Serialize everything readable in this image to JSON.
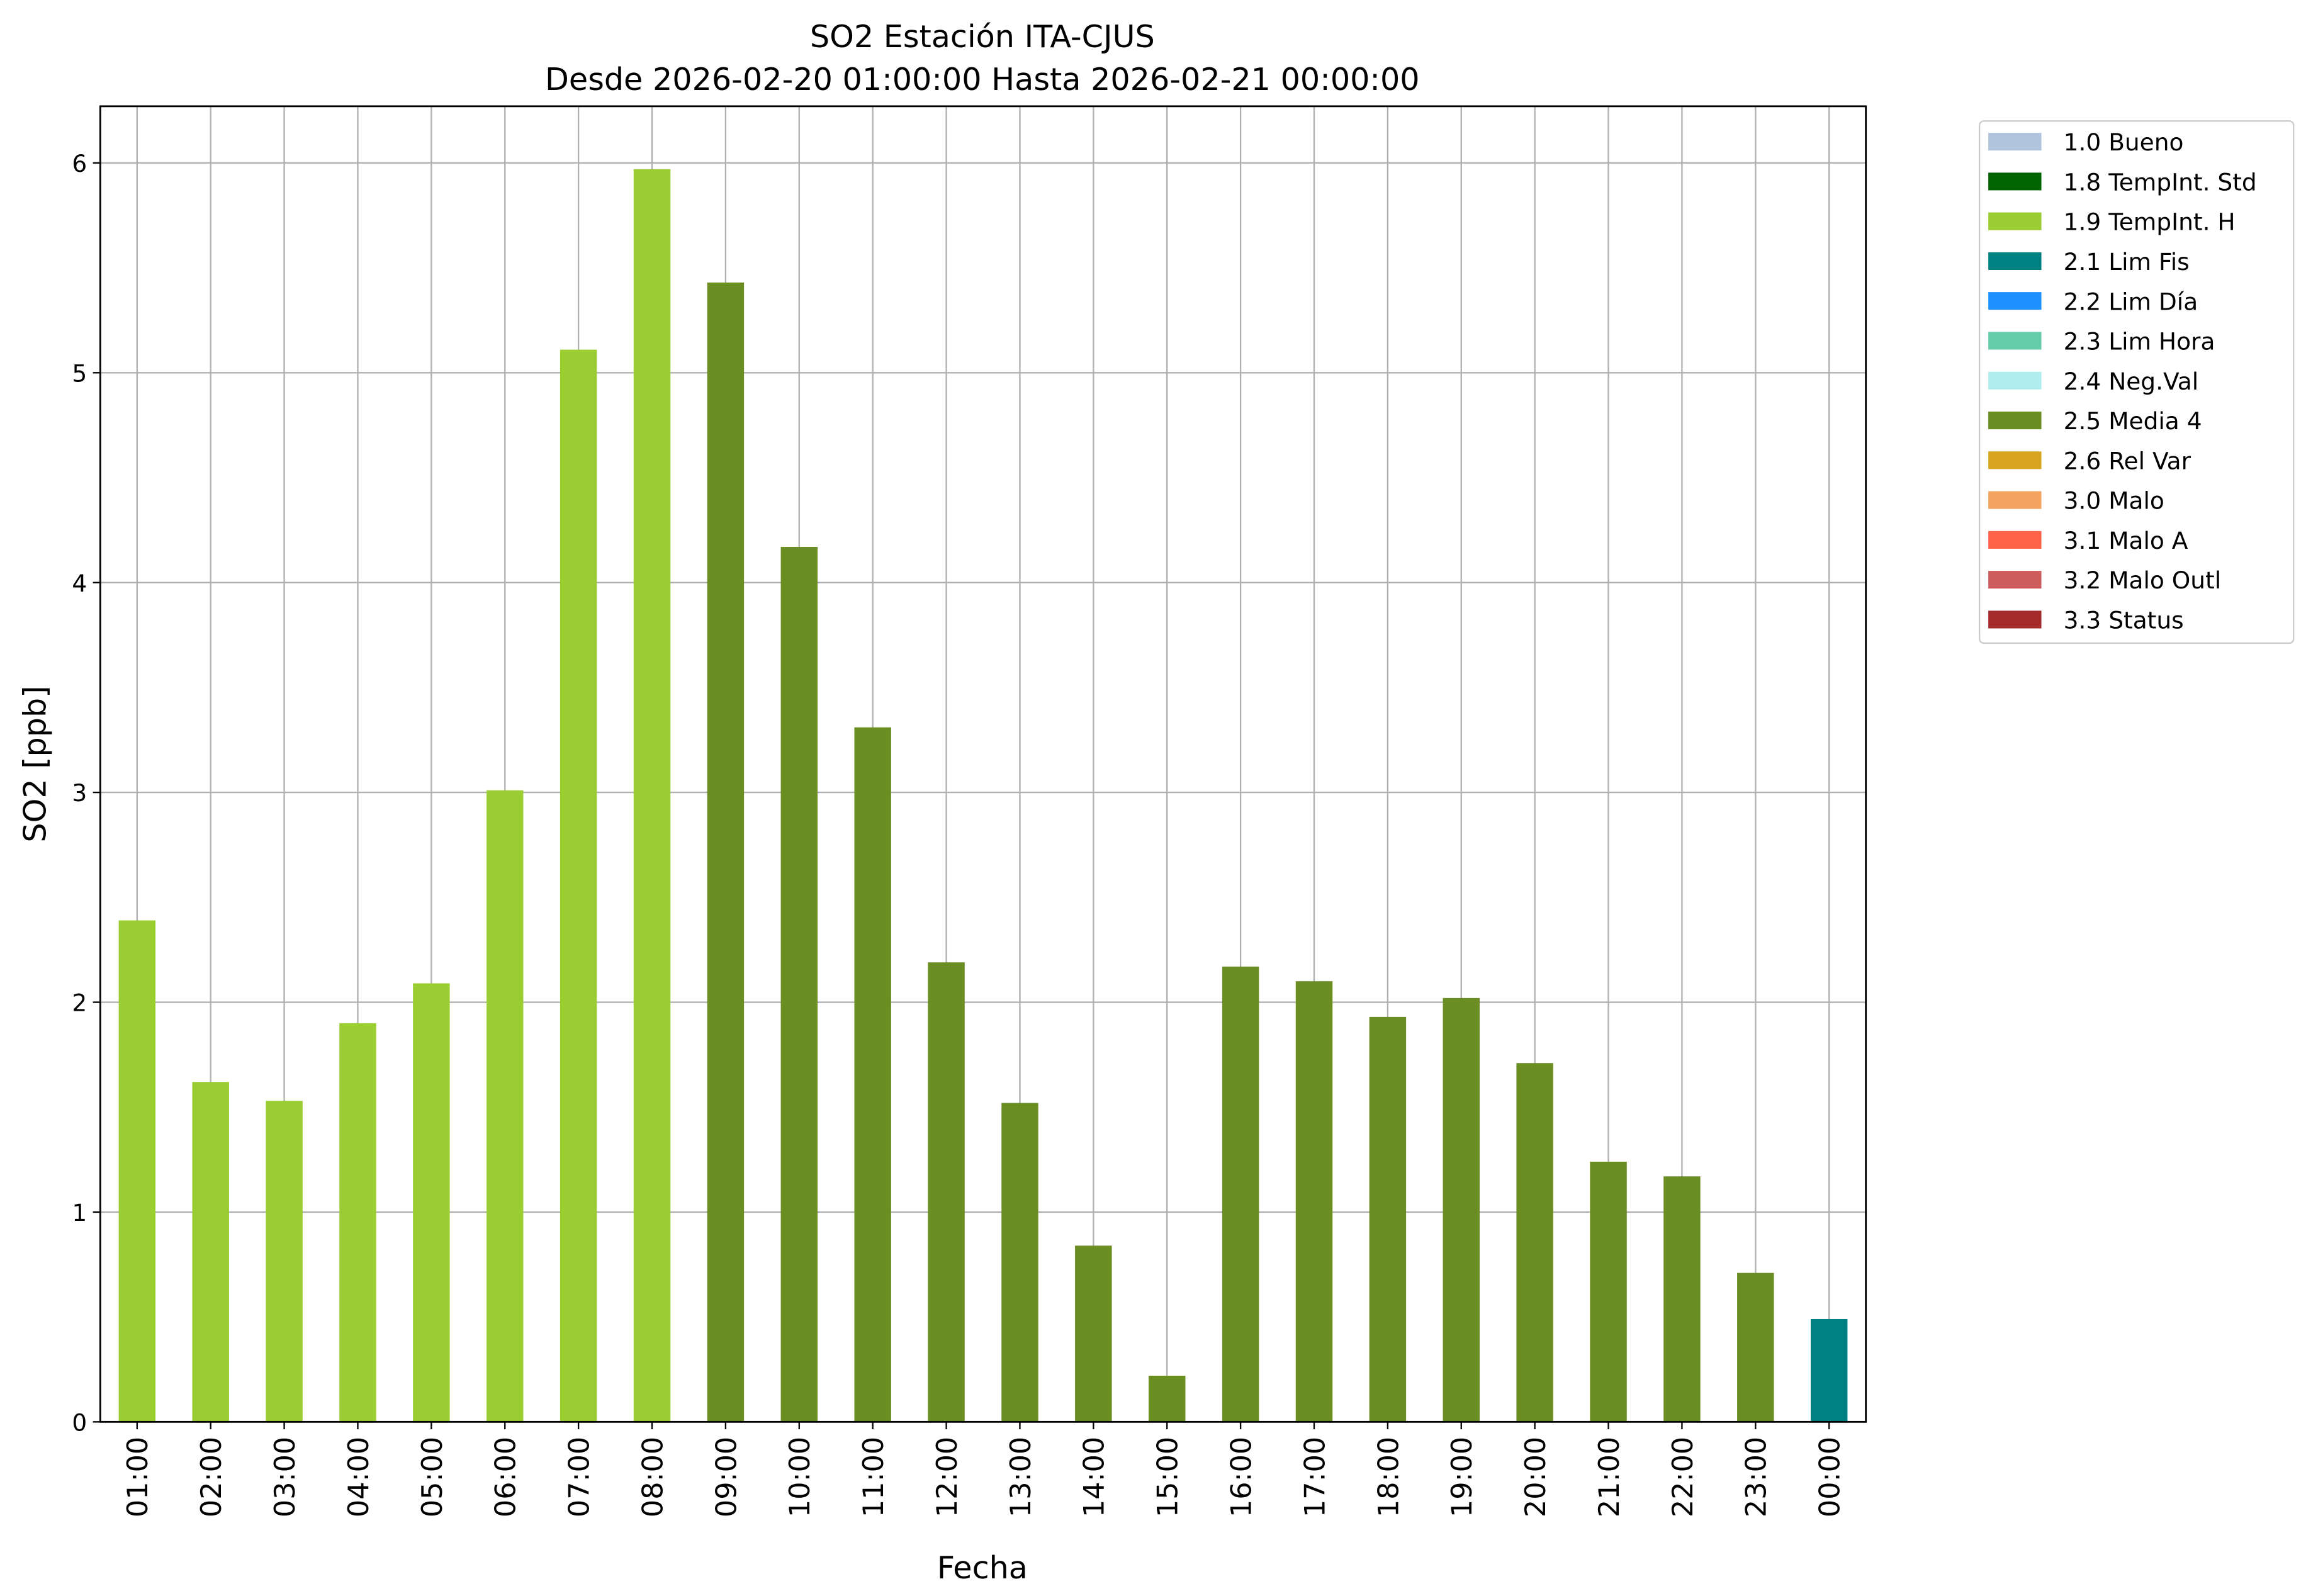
{
  "chart_data": {
    "type": "bar",
    "title": "SO2 Estación ITA-CJUS",
    "subtitle": "Desde 2026-02-20 01:00:00 Hasta 2026-02-21 00:00:00",
    "xlabel": "Fecha",
    "ylabel": "SO2 [ppb]",
    "ylim": [
      0,
      6.27
    ],
    "yticks": [
      "0",
      "1",
      "2",
      "3",
      "4",
      "5",
      "6"
    ],
    "grid": true,
    "legend_placement": "outside-top-right",
    "categories": [
      "01:00",
      "02:00",
      "03:00",
      "04:00",
      "05:00",
      "06:00",
      "07:00",
      "08:00",
      "09:00",
      "10:00",
      "11:00",
      "12:00",
      "13:00",
      "14:00",
      "15:00",
      "16:00",
      "17:00",
      "18:00",
      "19:00",
      "20:00",
      "21:00",
      "22:00",
      "23:00",
      "00:00"
    ],
    "values": [
      2.39,
      1.62,
      1.53,
      1.9,
      2.09,
      3.01,
      5.11,
      5.97,
      5.43,
      4.17,
      3.31,
      2.19,
      1.52,
      0.84,
      0.22,
      2.17,
      2.1,
      1.93,
      2.02,
      1.71,
      1.24,
      1.17,
      0.71,
      0.49
    ],
    "flags": [
      "1.9 TempInt. H",
      "1.9 TempInt. H",
      "1.9 TempInt. H",
      "1.9 TempInt. H",
      "1.9 TempInt. H",
      "1.9 TempInt. H",
      "1.9 TempInt. H",
      "1.9 TempInt. H",
      "2.5 Media 4",
      "2.5 Media 4",
      "2.5 Media 4",
      "2.5 Media 4",
      "2.5 Media 4",
      "2.5 Media 4",
      "2.5 Media 4",
      "2.5 Media 4",
      "2.5 Media 4",
      "2.5 Media 4",
      "2.5 Media 4",
      "2.5 Media 4",
      "2.5 Media 4",
      "2.5 Media 4",
      "2.5 Media 4",
      "2.1 Lim Fis"
    ],
    "legend": [
      {
        "label": "1.0 Bueno",
        "color": "#B0C4DE"
      },
      {
        "label": "1.8 TempInt. Std",
        "color": "#006400"
      },
      {
        "label": "1.9 TempInt. H",
        "color": "#9ACD32"
      },
      {
        "label": "2.1 Lim Fis",
        "color": "#008080"
      },
      {
        "label": "2.2 Lim Día",
        "color": "#1E90FF"
      },
      {
        "label": "2.3 Lim Hora",
        "color": "#66CDAA"
      },
      {
        "label": "2.4 Neg.Val",
        "color": "#AFEEEE"
      },
      {
        "label": "2.5 Media 4",
        "color": "#6B8E23"
      },
      {
        "label": "2.6 Rel Var",
        "color": "#DAA520"
      },
      {
        "label": "3.0 Malo",
        "color": "#F4A460"
      },
      {
        "label": "3.1 Malo A",
        "color": "#FF6347"
      },
      {
        "label": "3.2 Malo Outl",
        "color": "#CD5C5C"
      },
      {
        "label": "3.3 Status",
        "color": "#A52A2A"
      }
    ]
  }
}
